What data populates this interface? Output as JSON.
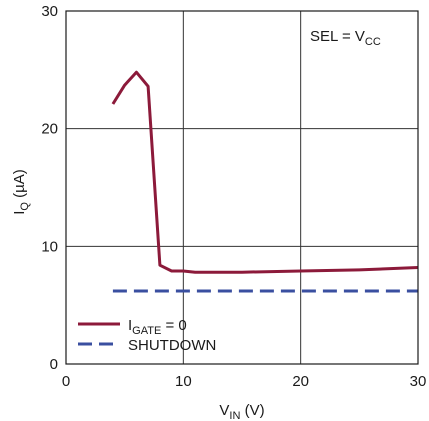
{
  "chart_data": {
    "type": "line",
    "xlabel": {
      "main": "V",
      "sub": "IN",
      "tail": " (V)"
    },
    "ylabel": {
      "main": "I",
      "sub": "Q",
      "tail": " (µA)"
    },
    "xlim": [
      0,
      30
    ],
    "ylim": [
      0,
      30
    ],
    "xticks": [
      0,
      10,
      20,
      30
    ],
    "yticks": [
      0,
      10,
      20,
      30
    ],
    "xtick_labels": [
      "0",
      "10",
      "20",
      "30"
    ],
    "ytick_labels": [
      "0",
      "10",
      "20",
      "30"
    ],
    "grid": true,
    "legend_position": "bottom-left",
    "annotation": {
      "main": "SEL = V",
      "sub": "CC"
    },
    "series": [
      {
        "name": {
          "main": "I",
          "sub": "GATE",
          "tail": " = 0"
        },
        "color": "#8c1a3a",
        "style": "solid",
        "x": [
          4,
          5,
          6,
          7,
          8,
          9,
          10,
          11,
          15,
          20,
          25,
          30
        ],
        "y": [
          22.1,
          23.7,
          24.8,
          23.6,
          8.4,
          7.9,
          7.9,
          7.8,
          7.8,
          7.9,
          8.0,
          8.2
        ]
      },
      {
        "name": {
          "main": "SHUTDOWN",
          "sub": "",
          "tail": ""
        },
        "color": "#3a4fa0",
        "style": "dashed",
        "x": [
          4,
          30
        ],
        "y": [
          6.2,
          6.2
        ]
      }
    ]
  }
}
